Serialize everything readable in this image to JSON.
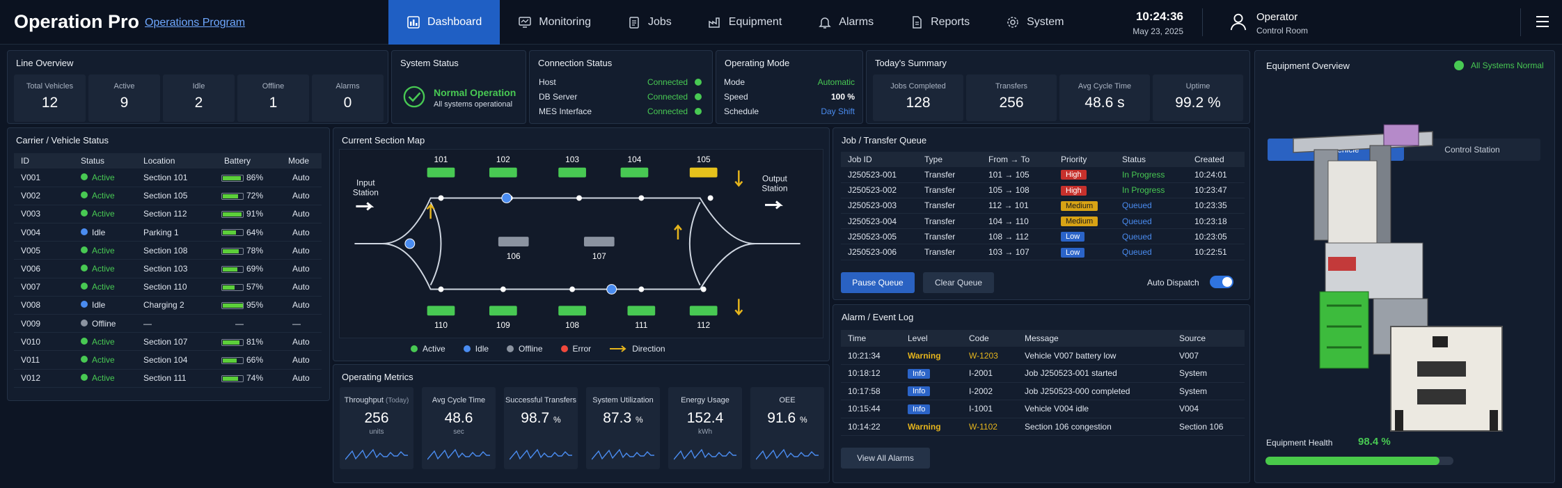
{
  "header": {
    "title": "Operation Pro",
    "subtitle": "Operations Program",
    "time": "10:24:36",
    "date": "May 23, 2025",
    "user_name": "Operator",
    "user_role": "Control Room"
  },
  "nav": [
    {
      "label": "Dashboard",
      "icon": "dashboard-icon"
    },
    {
      "label": "Monitoring",
      "icon": "monitor-icon"
    },
    {
      "label": "Jobs",
      "icon": "clipboard-icon"
    },
    {
      "label": "Equipment",
      "icon": "factory-icon"
    },
    {
      "label": "Alarms",
      "icon": "bell-icon"
    },
    {
      "label": "Reports",
      "icon": "report-icon"
    },
    {
      "label": "System",
      "icon": "gear-icon"
    }
  ],
  "line_overview": {
    "title": "Line Overview",
    "tiles": [
      {
        "label": "Total Vehicles",
        "value": "12"
      },
      {
        "label": "Active",
        "value": "9"
      },
      {
        "label": "Idle",
        "value": "2"
      },
      {
        "label": "Offline",
        "value": "1"
      },
      {
        "label": "Alarms",
        "value": "0"
      }
    ]
  },
  "system_status": {
    "title": "System Status",
    "status": "Normal Operation",
    "detail": "All systems operational"
  },
  "connection_status": {
    "title": "Connection Status",
    "items": [
      {
        "label": "Host",
        "value": "Connected"
      },
      {
        "label": "DB Server",
        "value": "Connected"
      },
      {
        "label": "MES Interface",
        "value": "Connected"
      }
    ]
  },
  "operating_mode": {
    "title": "Operating Mode",
    "items": [
      {
        "label": "Mode",
        "value": "Automatic"
      },
      {
        "label": "Speed",
        "value": "100 %"
      },
      {
        "label": "Schedule",
        "value": "Day Shift"
      }
    ]
  },
  "summary": {
    "title": "Today's Summary",
    "tiles": [
      {
        "label": "Jobs Completed",
        "value": "128"
      },
      {
        "label": "Transfers",
        "value": "256"
      },
      {
        "label": "Avg Cycle Time",
        "value": "48.6 s"
      },
      {
        "label": "Uptime",
        "value": "99.2 %"
      }
    ]
  },
  "equipment": {
    "title": "Equipment Overview",
    "status": "All Systems Normal",
    "tabs": [
      "OHT Vehicle",
      "Control Station"
    ],
    "health_label": "Equipment Health",
    "health_value": "98.4 %",
    "health_fraction": 0.984
  },
  "vehicles": {
    "title": "Carrier / Vehicle Status",
    "columns": [
      "ID",
      "Status",
      "Location",
      "Battery",
      "Mode"
    ],
    "rows": [
      {
        "id": "V001",
        "status": "Active",
        "location": "Section 101",
        "battery": "86%",
        "level": 0.86,
        "mode": "Auto"
      },
      {
        "id": "V002",
        "status": "Active",
        "location": "Section 105",
        "battery": "72%",
        "level": 0.72,
        "mode": "Auto"
      },
      {
        "id": "V003",
        "status": "Active",
        "location": "Section 112",
        "battery": "91%",
        "level": 0.91,
        "mode": "Auto"
      },
      {
        "id": "V004",
        "status": "Idle",
        "location": "Parking 1",
        "battery": "64%",
        "level": 0.64,
        "mode": "Auto"
      },
      {
        "id": "V005",
        "status": "Active",
        "location": "Section 108",
        "battery": "78%",
        "level": 0.78,
        "mode": "Auto"
      },
      {
        "id": "V006",
        "status": "Active",
        "location": "Section 103",
        "battery": "69%",
        "level": 0.69,
        "mode": "Auto"
      },
      {
        "id": "V007",
        "status": "Active",
        "location": "Section 110",
        "battery": "57%",
        "level": 0.57,
        "mode": "Auto"
      },
      {
        "id": "V008",
        "status": "Idle",
        "location": "Charging 2",
        "battery": "95%",
        "level": 0.95,
        "mode": "Auto"
      },
      {
        "id": "V009",
        "status": "Offline",
        "location": "—",
        "battery": "—",
        "level": 0,
        "mode": "—"
      },
      {
        "id": "V010",
        "status": "Active",
        "location": "Section 107",
        "battery": "81%",
        "level": 0.81,
        "mode": "Auto"
      },
      {
        "id": "V011",
        "status": "Active",
        "location": "Section 104",
        "battery": "66%",
        "level": 0.66,
        "mode": "Auto"
      },
      {
        "id": "V012",
        "status": "Active",
        "location": "Section 111",
        "battery": "74%",
        "level": 0.74,
        "mode": "Auto"
      }
    ]
  },
  "section_map": {
    "title": "Current Section Map",
    "input_label": "Input\nStation",
    "output_label": "Output\nStation",
    "top_sections": [
      "101",
      "102",
      "103",
      "104",
      "105"
    ],
    "mid_sections": [
      "106",
      "107"
    ],
    "bottom_sections": [
      "110",
      "109",
      "108",
      "111",
      "112"
    ],
    "legend": [
      "Active",
      "Idle",
      "Offline",
      "Error",
      "Direction"
    ]
  },
  "jobs": {
    "title": "Job / Transfer Queue",
    "columns": [
      "Job ID",
      "Type",
      "From → To",
      "Priority",
      "Status",
      "Created"
    ],
    "rows": [
      {
        "id": "J250523-001",
        "type": "Transfer",
        "route": "101 → 105",
        "priority": "High",
        "status": "In Progress",
        "created": "10:24:01"
      },
      {
        "id": "J250523-002",
        "type": "Transfer",
        "route": "105 → 108",
        "priority": "High",
        "status": "In Progress",
        "created": "10:23:47"
      },
      {
        "id": "J250523-003",
        "type": "Transfer",
        "route": "112 → 101",
        "priority": "Medium",
        "status": "Queued",
        "created": "10:23:35"
      },
      {
        "id": "J250523-004",
        "type": "Transfer",
        "route": "104 → 110",
        "priority": "Medium",
        "status": "Queued",
        "created": "10:23:18"
      },
      {
        "id": "J250523-005",
        "type": "Transfer",
        "route": "108 → 112",
        "priority": "Low",
        "status": "Queued",
        "created": "10:23:05"
      },
      {
        "id": "J250523-006",
        "type": "Transfer",
        "route": "103 → 107",
        "priority": "Low",
        "status": "Queued",
        "created": "10:22:51"
      }
    ],
    "pause_label": "Pause Queue",
    "clear_label": "Clear Queue",
    "auto_dispatch_label": "Auto Dispatch"
  },
  "alarms": {
    "title": "Alarm / Event Log",
    "columns": [
      "Time",
      "Level",
      "Code",
      "Message",
      "Source"
    ],
    "rows": [
      {
        "time": "10:21:34",
        "level": "Warning",
        "code": "W-1203",
        "message": "Vehicle V007 battery low",
        "source": "V007"
      },
      {
        "time": "10:18:12",
        "level": "Info",
        "code": "I-2001",
        "message": "Job J250523-001 started",
        "source": "System"
      },
      {
        "time": "10:17:58",
        "level": "Info",
        "code": "I-2002",
        "message": "Job J250523-000 completed",
        "source": "System"
      },
      {
        "time": "10:15:44",
        "level": "Info",
        "code": "I-1001",
        "message": "Vehicle V004 idle",
        "source": "V004"
      },
      {
        "time": "10:14:22",
        "level": "Warning",
        "code": "W-1102",
        "message": "Section 106 congestion",
        "source": "Section 106"
      }
    ],
    "view_all_label": "View All Alarms"
  },
  "metrics": {
    "title": "Operating Metrics",
    "items": [
      {
        "label": "Throughput",
        "qual": "(Today)",
        "value": "256",
        "unit": "units"
      },
      {
        "label": "Avg Cycle Time",
        "qual": "",
        "value": "48.6",
        "unit": "sec"
      },
      {
        "label": "Successful Transfers",
        "qual": "",
        "value": "98.7",
        "pct": "%",
        "unit": ""
      },
      {
        "label": "System Utilization",
        "qual": "",
        "value": "87.3",
        "pct": "%",
        "unit": ""
      },
      {
        "label": "Energy Usage",
        "qual": "",
        "value": "152.4",
        "unit": "kWh"
      },
      {
        "label": "OEE",
        "qual": "",
        "value": "91.6",
        "pct": "%",
        "unit": ""
      }
    ]
  },
  "colors": {
    "active": "#48c953",
    "idle": "#4a8cf0",
    "offline": "#8b93a0",
    "error": "#f0483c",
    "direction": "#e6b51c"
  }
}
